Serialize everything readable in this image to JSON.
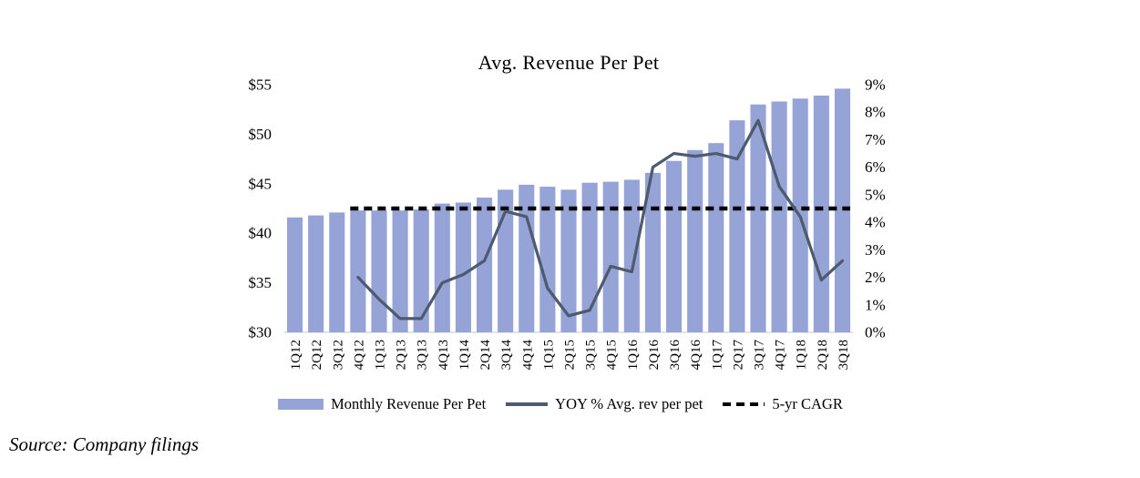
{
  "footer": {
    "source": "Source: Company filings"
  },
  "colors": {
    "bar": "#95A3D7",
    "line": "#4E5B6E",
    "dash": "#000000"
  },
  "chart_data": {
    "type": "bar",
    "title": "Avg. Revenue Per Pet",
    "categories": [
      "1Q12",
      "2Q12",
      "3Q12",
      "4Q12",
      "1Q13",
      "2Q13",
      "3Q13",
      "4Q13",
      "1Q14",
      "2Q14",
      "3Q14",
      "4Q14",
      "1Q15",
      "2Q15",
      "3Q15",
      "4Q15",
      "1Q16",
      "2Q16",
      "3Q16",
      "4Q16",
      "1Q17",
      "2Q17",
      "3Q17",
      "4Q17",
      "1Q18",
      "2Q18",
      "3Q18"
    ],
    "series": [
      {
        "name": "Monthly Revenue Per Pet",
        "type": "bar",
        "axis": "left",
        "unit": "$",
        "values": [
          41.6,
          41.8,
          42.1,
          42.3,
          42.3,
          42.3,
          42.4,
          43.0,
          43.1,
          43.6,
          44.4,
          44.9,
          44.7,
          44.4,
          45.1,
          45.2,
          45.4,
          46.1,
          47.3,
          48.4,
          49.1,
          51.4,
          53.0,
          53.3,
          53.6,
          53.9,
          54.6
        ]
      },
      {
        "name": "YOY % Avg. rev per pet",
        "type": "line",
        "axis": "right",
        "unit": "%",
        "values": [
          null,
          null,
          null,
          2.0,
          1.2,
          0.5,
          0.5,
          1.8,
          2.1,
          2.6,
          4.4,
          4.2,
          1.6,
          0.6,
          0.8,
          2.4,
          2.2,
          6.0,
          6.5,
          6.4,
          6.5,
          6.3,
          7.7,
          5.3,
          4.2,
          1.9,
          2.6
        ]
      },
      {
        "name": "5-yr CAGR",
        "type": "dashed-line",
        "axis": "right",
        "unit": "%",
        "constant_value": 4.5,
        "from_category": "4Q12",
        "to_category": "3Q18"
      }
    ],
    "left_axis": {
      "min": 30,
      "max": 55,
      "tick_values": [
        30,
        35,
        40,
        45,
        50,
        55
      ],
      "tick_labels": [
        "$30",
        "$35",
        "$40",
        "$45",
        "$50",
        "$55"
      ]
    },
    "right_axis": {
      "min": 0,
      "max": 9,
      "tick_values": [
        0,
        1,
        2,
        3,
        4,
        5,
        6,
        7,
        8,
        9
      ],
      "tick_labels": [
        "0%",
        "1%",
        "2%",
        "3%",
        "4%",
        "5%",
        "6%",
        "7%",
        "8%",
        "9%"
      ]
    },
    "grid": false,
    "legend_position": "bottom"
  }
}
